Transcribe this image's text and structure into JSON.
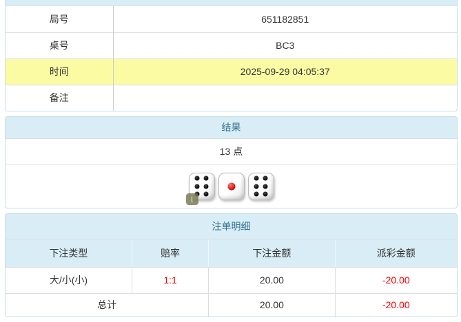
{
  "colors": {
    "heading_bg": "#d9edf7",
    "heading_text": "#31708f",
    "panel_border": "#c3dfe8",
    "cell_border": "#dddddd",
    "highlight_row_bg": "#fbfba4",
    "negative_text": "#ff0000",
    "body_text": "#333333"
  },
  "info_table": {
    "rows": [
      {
        "label": "局号",
        "value": "651182851"
      },
      {
        "label": "桌号",
        "value": "BC3"
      },
      {
        "label": "时间",
        "value": "2025-09-29 04:05:37"
      },
      {
        "label": "备注",
        "value": ""
      }
    ]
  },
  "result_panel": {
    "title": "结果",
    "points": "13 点",
    "dice": [
      6,
      1,
      6
    ],
    "info_badge": "i"
  },
  "bets_panel": {
    "title": "注单明细",
    "columns": [
      "下注类型",
      "赔率",
      "下注金额",
      "派彩金额"
    ],
    "rows": [
      {
        "type": "大/小(小)",
        "odds": "1:1",
        "bet": "20.00",
        "payout": "-20.00"
      }
    ],
    "total": {
      "label": "总计",
      "bet": "20.00",
      "payout": "-20.00"
    }
  }
}
